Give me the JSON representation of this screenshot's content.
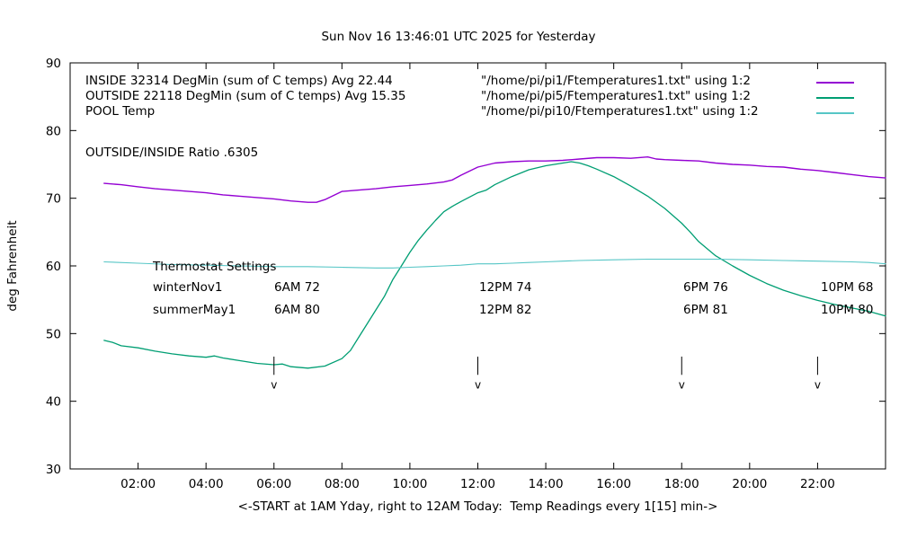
{
  "title": "Sun Nov 16 13:46:01 UTC 2025 for Yesterday",
  "ylabel": "deg Fahrenheit",
  "xlabel": "<-START at 1AM Yday, right to 12AM Today:  Temp Readings every 1[15] min->",
  "ratio_text": "OUTSIDE/INSIDE Ratio .6305",
  "legend": [
    {
      "label": "INSIDE 32314 DegMin (sum of C temps) Avg 22.44",
      "file": "\"/home/pi/pi1/Ftemperatures1.txt\" using 1:2",
      "color": "#9400d3"
    },
    {
      "label": "OUTSIDE 22118 DegMin (sum of C temps) Avg 15.35",
      "file": "\"/home/pi/pi5/Ftemperatures1.txt\" using 1:2",
      "color": "#009e73"
    },
    {
      "label": "POOL Temp",
      "file": "\"/home/pi/pi10/Ftemperatures1.txt\" using 1:2",
      "color": "#56c6c6"
    }
  ],
  "thermostat": {
    "heading": "Thermostat Settings",
    "rows": [
      {
        "name": "winterNov1",
        "settings": [
          "6AM 72",
          "12PM 74",
          "6PM 76",
          "10PM 68"
        ]
      },
      {
        "name": "summerMay1",
        "settings": [
          "6AM 80",
          "12PM 82",
          "6PM 81",
          "10PM 80"
        ]
      }
    ]
  },
  "chart_data": {
    "type": "line",
    "title": "Sun Nov 16 13:46:01 UTC 2025 for Yesterday",
    "xlabel": "<-START at 1AM Yday, right to 12AM Today:  Temp Readings every 1[15] min->",
    "ylabel": "deg Fahrenheit",
    "xlim": [
      0,
      24
    ],
    "ylim": [
      30,
      90
    ],
    "grid": false,
    "legend_position": "top-left-inside",
    "yticks": [
      30,
      40,
      50,
      60,
      70,
      80,
      90
    ],
    "xticks": [
      {
        "h": 2,
        "label": "02:00"
      },
      {
        "h": 4,
        "label": "04:00"
      },
      {
        "h": 6,
        "label": "06:00"
      },
      {
        "h": 8,
        "label": "08:00"
      },
      {
        "h": 10,
        "label": "10:00"
      },
      {
        "h": 12,
        "label": "12:00"
      },
      {
        "h": 14,
        "label": "14:00"
      },
      {
        "h": 16,
        "label": "16:00"
      },
      {
        "h": 18,
        "label": "18:00"
      },
      {
        "h": 20,
        "label": "20:00"
      },
      {
        "h": 22,
        "label": "22:00"
      }
    ],
    "arrows_at_hours": [
      6,
      12,
      18,
      22
    ],
    "series": [
      {
        "name": "INSIDE",
        "color": "#9400d3",
        "width": 1.4,
        "points": [
          [
            1,
            72.2
          ],
          [
            1.5,
            72.0
          ],
          [
            2,
            71.7
          ],
          [
            2.5,
            71.4
          ],
          [
            3,
            71.2
          ],
          [
            3.5,
            71.0
          ],
          [
            4,
            70.8
          ],
          [
            4.5,
            70.5
          ],
          [
            5,
            70.3
          ],
          [
            5.5,
            70.1
          ],
          [
            6,
            69.9
          ],
          [
            6.5,
            69.6
          ],
          [
            7,
            69.4
          ],
          [
            7.25,
            69.4
          ],
          [
            7.5,
            69.8
          ],
          [
            8,
            71.0
          ],
          [
            8.5,
            71.2
          ],
          [
            9,
            71.4
          ],
          [
            9.5,
            71.7
          ],
          [
            10,
            71.9
          ],
          [
            10.5,
            72.1
          ],
          [
            11,
            72.4
          ],
          [
            11.25,
            72.7
          ],
          [
            11.5,
            73.4
          ],
          [
            12,
            74.6
          ],
          [
            12.5,
            75.2
          ],
          [
            13,
            75.4
          ],
          [
            13.5,
            75.5
          ],
          [
            14,
            75.5
          ],
          [
            14.5,
            75.6
          ],
          [
            15,
            75.8
          ],
          [
            15.5,
            76.0
          ],
          [
            16,
            76.0
          ],
          [
            16.5,
            75.9
          ],
          [
            17,
            76.1
          ],
          [
            17.25,
            75.8
          ],
          [
            17.5,
            75.7
          ],
          [
            18,
            75.6
          ],
          [
            18.5,
            75.5
          ],
          [
            19,
            75.2
          ],
          [
            19.5,
            75.0
          ],
          [
            20,
            74.9
          ],
          [
            20.5,
            74.7
          ],
          [
            21,
            74.6
          ],
          [
            21.5,
            74.3
          ],
          [
            22,
            74.1
          ],
          [
            22.5,
            73.8
          ],
          [
            23,
            73.5
          ],
          [
            23.5,
            73.2
          ],
          [
            24,
            73.0
          ]
        ]
      },
      {
        "name": "OUTSIDE",
        "color": "#009e73",
        "width": 1.3,
        "points": [
          [
            1,
            49.0
          ],
          [
            1.25,
            48.7
          ],
          [
            1.5,
            48.2
          ],
          [
            2,
            47.9
          ],
          [
            2.5,
            47.4
          ],
          [
            3,
            47.0
          ],
          [
            3.5,
            46.7
          ],
          [
            4,
            46.5
          ],
          [
            4.25,
            46.7
          ],
          [
            4.5,
            46.4
          ],
          [
            5,
            46.0
          ],
          [
            5.5,
            45.6
          ],
          [
            6,
            45.4
          ],
          [
            6.25,
            45.5
          ],
          [
            6.5,
            45.1
          ],
          [
            7,
            44.9
          ],
          [
            7.5,
            45.2
          ],
          [
            8,
            46.3
          ],
          [
            8.25,
            47.5
          ],
          [
            8.5,
            49.5
          ],
          [
            8.75,
            51.5
          ],
          [
            9,
            53.5
          ],
          [
            9.25,
            55.5
          ],
          [
            9.5,
            58.0
          ],
          [
            9.75,
            60.0
          ],
          [
            10,
            62.0
          ],
          [
            10.25,
            63.8
          ],
          [
            10.5,
            65.3
          ],
          [
            10.75,
            66.7
          ],
          [
            11,
            68.0
          ],
          [
            11.25,
            68.8
          ],
          [
            11.5,
            69.5
          ],
          [
            12,
            70.8
          ],
          [
            12.25,
            71.2
          ],
          [
            12.5,
            72.0
          ],
          [
            13,
            73.2
          ],
          [
            13.5,
            74.2
          ],
          [
            14,
            74.8
          ],
          [
            14.5,
            75.2
          ],
          [
            14.75,
            75.4
          ],
          [
            15,
            75.2
          ],
          [
            15.25,
            74.8
          ],
          [
            15.5,
            74.3
          ],
          [
            16,
            73.2
          ],
          [
            16.5,
            71.8
          ],
          [
            17,
            70.3
          ],
          [
            17.5,
            68.5
          ],
          [
            18,
            66.3
          ],
          [
            18.25,
            65.0
          ],
          [
            18.5,
            63.6
          ],
          [
            19,
            61.5
          ],
          [
            19.5,
            60.0
          ],
          [
            20,
            58.6
          ],
          [
            20.5,
            57.4
          ],
          [
            21,
            56.4
          ],
          [
            21.5,
            55.6
          ],
          [
            22,
            54.9
          ],
          [
            22.5,
            54.3
          ],
          [
            23,
            53.8
          ],
          [
            23.5,
            53.3
          ],
          [
            24,
            52.6
          ]
        ]
      },
      {
        "name": "POOL",
        "color": "#56c6c6",
        "width": 1.1,
        "points": [
          [
            1,
            60.6
          ],
          [
            2,
            60.4
          ],
          [
            3,
            60.2
          ],
          [
            4,
            60.1
          ],
          [
            5,
            60.0
          ],
          [
            6,
            59.9
          ],
          [
            7,
            59.9
          ],
          [
            8,
            59.8
          ],
          [
            9,
            59.7
          ],
          [
            9.5,
            59.7
          ],
          [
            10,
            59.8
          ],
          [
            10.5,
            59.9
          ],
          [
            11,
            60.0
          ],
          [
            11.5,
            60.1
          ],
          [
            12,
            60.3
          ],
          [
            12.5,
            60.3
          ],
          [
            13,
            60.4
          ],
          [
            13.5,
            60.5
          ],
          [
            14,
            60.6
          ],
          [
            14.5,
            60.7
          ],
          [
            15,
            60.8
          ],
          [
            16,
            60.9
          ],
          [
            17,
            61.0
          ],
          [
            18,
            61.0
          ],
          [
            19,
            61.0
          ],
          [
            20,
            60.9
          ],
          [
            21,
            60.8
          ],
          [
            22,
            60.7
          ],
          [
            23,
            60.6
          ],
          [
            23.5,
            60.5
          ],
          [
            24,
            60.3
          ]
        ]
      }
    ]
  }
}
